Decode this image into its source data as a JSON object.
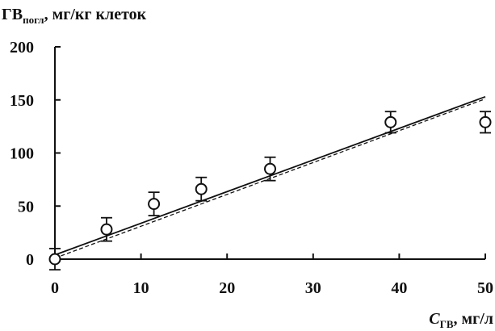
{
  "chart_data": {
    "type": "scatter",
    "y_title": {
      "main": "ГВ",
      "sub": "погл",
      "rest": ", мг/кг клеток"
    },
    "x_title": {
      "main": "C",
      "sub": "ГВ",
      "rest": ", мг/л"
    },
    "xlim": [
      0,
      50
    ],
    "ylim": [
      0,
      200
    ],
    "x_ticks": [
      0,
      10,
      20,
      30,
      40,
      50
    ],
    "y_ticks": [
      0,
      50,
      100,
      150,
      200
    ],
    "series": [
      {
        "points": [
          {
            "x": 0,
            "y": 0,
            "err": 10
          },
          {
            "x": 6,
            "y": 28,
            "err": 11
          },
          {
            "x": 11.5,
            "y": 52,
            "err": 11
          },
          {
            "x": 17,
            "y": 66,
            "err": 11
          },
          {
            "x": 25,
            "y": 85,
            "err": 11
          },
          {
            "x": 39,
            "y": 129,
            "err": 10
          },
          {
            "x": 50,
            "y": 129,
            "err": 10
          }
        ]
      }
    ],
    "fit_lines": [
      {
        "style": "solid",
        "x": [
          0,
          50
        ],
        "y": [
          4,
          153
        ]
      },
      {
        "style": "dashed",
        "x": [
          0,
          50
        ],
        "y": [
          1,
          151
        ]
      }
    ],
    "grid": false,
    "legend": "none"
  }
}
